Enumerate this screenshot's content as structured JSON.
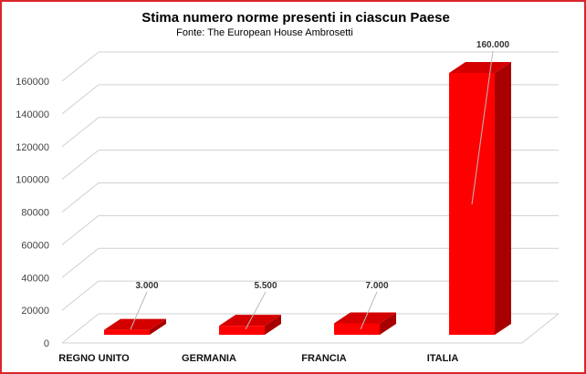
{
  "chart_data": {
    "type": "bar",
    "title": "Stima numero norme presenti in ciascun Paese",
    "subtitle": "Fonte: The European House Ambrosetti",
    "categories": [
      "REGNO UNITO",
      "GERMANIA",
      "FRANCIA",
      "ITALIA"
    ],
    "values": [
      3000,
      5500,
      7000,
      160000
    ],
    "data_labels": [
      "3.000",
      "5.500",
      "7.000",
      "160.000"
    ],
    "y_ticks": [
      0,
      20000,
      40000,
      60000,
      80000,
      100000,
      120000,
      140000,
      160000
    ],
    "ylim": [
      0,
      160000
    ],
    "grid": true,
    "legend": "none",
    "style": "3d-column",
    "colors": {
      "bar_front": "#ff0000",
      "bar_side": "#a80000",
      "bar_top": "#d40000",
      "frame": "#d9262c",
      "grid": "#d0d0d0"
    }
  }
}
